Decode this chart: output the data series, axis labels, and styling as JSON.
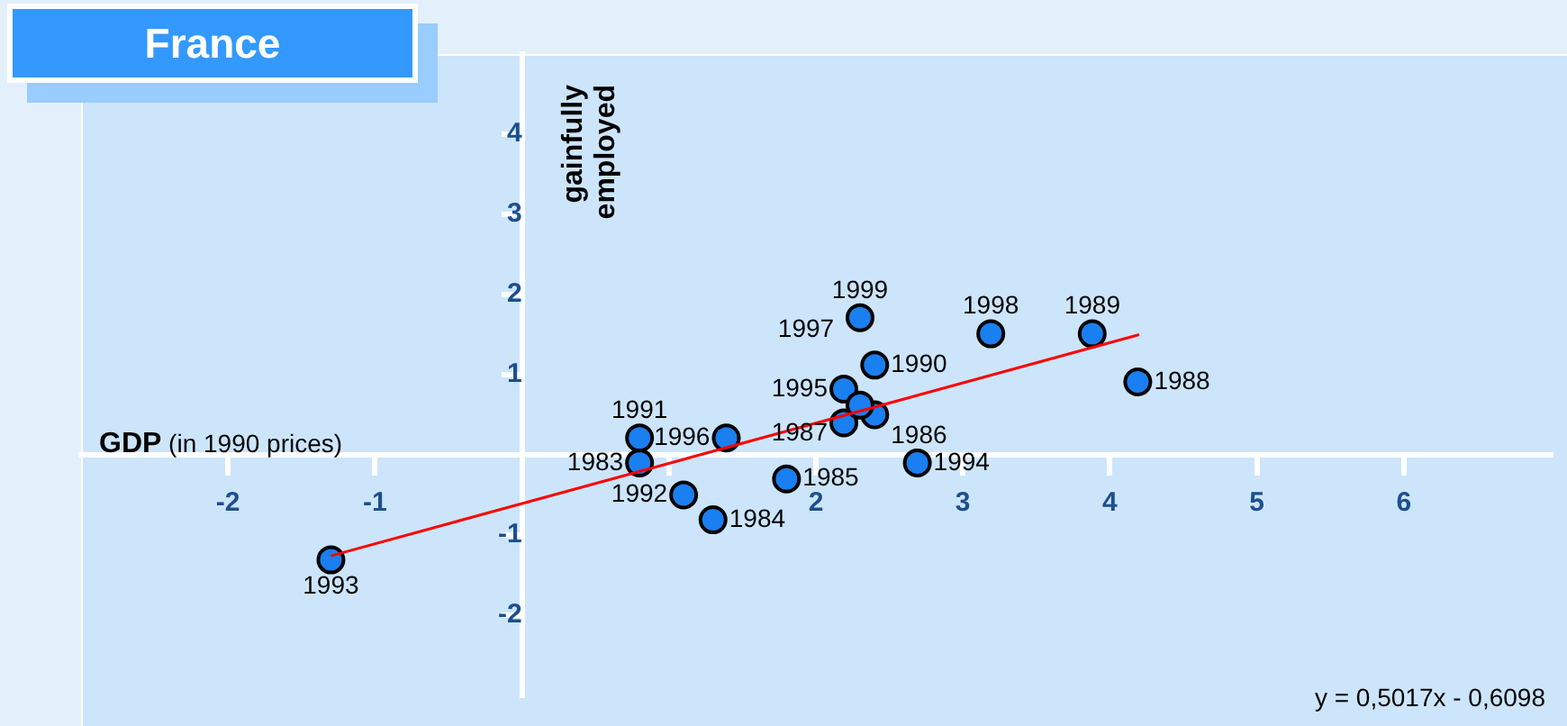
{
  "chart_data": {
    "type": "scatter",
    "title": "France",
    "xlabel": "GDP (in 1990 prices)",
    "ylabel": "gainfully employed",
    "xlim": [
      -3,
      7
    ],
    "ylim": [
      -3,
      5
    ],
    "xticks": [
      -2,
      -1,
      {
        "value": 1,
        "label": null
      },
      2,
      3,
      4,
      5,
      6
    ],
    "yticks": [
      -2,
      -1,
      1,
      2,
      3,
      4
    ],
    "grid": false,
    "legend": false,
    "marker": "circle",
    "series": [
      {
        "type": "scatter",
        "color": "#1a7ff0",
        "x": [
          0.8,
          1.3,
          1.8,
          2.4,
          2.19,
          4.19,
          3.88,
          2.4,
          0.8,
          1.1,
          -1.3,
          2.69,
          2.19,
          1.39,
          2.3,
          3.19,
          2.3
        ],
        "values": [
          -0.1,
          -0.81,
          -0.3,
          0.5,
          0.4,
          0.91,
          1.51,
          1.12,
          0.21,
          -0.5,
          -1.31,
          -0.1,
          0.82,
          0.21,
          0.62,
          1.51,
          1.71
        ]
      },
      {
        "type": "line",
        "color": "#ff0000",
        "marker": "none",
        "x": [
          -1.3,
          4.2
        ],
        "values": [
          -1.26,
          1.5
        ]
      }
    ],
    "annotations": [
      {
        "text": "1983",
        "x": 0.8,
        "y": -0.1
      },
      {
        "text": "1984",
        "x": 1.3,
        "y": -0.81
      },
      {
        "text": "1985",
        "x": 1.8,
        "y": -0.3
      },
      {
        "text": "1986",
        "x": 2.4,
        "y": 0.5
      },
      {
        "text": "1987",
        "x": 2.19,
        "y": 0.4
      },
      {
        "text": "1988",
        "x": 4.19,
        "y": 0.91
      },
      {
        "text": "1989",
        "x": 3.88,
        "y": 1.51
      },
      {
        "text": "1990",
        "x": 2.4,
        "y": 1.12
      },
      {
        "text": "1991",
        "x": 0.8,
        "y": 0.21
      },
      {
        "text": "1992",
        "x": 1.1,
        "y": -0.5
      },
      {
        "text": "1993",
        "x": -1.3,
        "y": -1.31
      },
      {
        "text": "1994",
        "x": 2.69,
        "y": -0.1
      },
      {
        "text": "1995",
        "x": 2.19,
        "y": 0.82
      },
      {
        "text": "1996",
        "x": 1.39,
        "y": 0.21
      },
      {
        "text": "1997",
        "x": 2.3,
        "y": 0.62
      },
      {
        "text": "1998",
        "x": 3.19,
        "y": 1.51
      },
      {
        "text": "1999",
        "x": 2.3,
        "y": 1.71
      },
      "y = 0,5017x - 0,6098"
    ]
  }
}
